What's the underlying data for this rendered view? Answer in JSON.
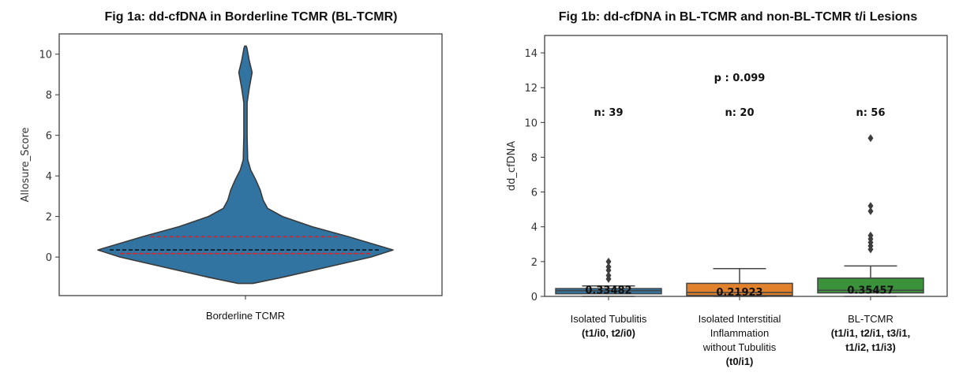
{
  "chart_data": [
    {
      "type": "violin",
      "title": "Fig 1a: dd-cfDNA in Borderline TCMR (BL-TCMR)",
      "xlabel": "",
      "ylabel": "Allosure_Score",
      "categories": [
        "Borderline TCMR"
      ],
      "ylim": [
        -1.9,
        11
      ],
      "yticks": [
        0,
        2,
        4,
        6,
        8,
        10
      ],
      "color": "#3274a1",
      "median": 0.35,
      "q1": 0.17,
      "q3": 1.0,
      "density_profile": [
        [
          -1.3,
          0.05
        ],
        [
          -1.0,
          0.25
        ],
        [
          -0.5,
          0.55
        ],
        [
          0,
          0.85
        ],
        [
          0.35,
          1.0
        ],
        [
          1.0,
          0.7
        ],
        [
          1.5,
          0.45
        ],
        [
          2.0,
          0.25
        ],
        [
          2.4,
          0.15
        ],
        [
          2.8,
          0.12
        ],
        [
          3.3,
          0.1
        ],
        [
          3.8,
          0.07
        ],
        [
          4.3,
          0.035
        ],
        [
          4.8,
          0.015
        ],
        [
          6,
          0.011
        ],
        [
          7.6,
          0.011
        ],
        [
          8.3,
          0.025
        ],
        [
          9.1,
          0.045
        ],
        [
          9.7,
          0.025
        ],
        [
          10.3,
          0.01
        ],
        [
          10.4,
          0.005
        ]
      ]
    },
    {
      "type": "box",
      "title": "Fig 1b: dd-cfDNA in BL-TCMR and non-BL-TCMR t/i Lesions",
      "xlabel": "",
      "ylabel": "dd_cfDNA",
      "ylim": [
        0,
        15
      ],
      "yticks": [
        0,
        2,
        4,
        6,
        8,
        10,
        12,
        14
      ],
      "p_value_label": "p : 0.099",
      "p_value_y": 12.6,
      "n_label_y": 10.6,
      "groups": [
        {
          "label_lines": [
            "Isolated Tubulitis"
          ],
          "label_bold_lines": [
            "(t1/i0, t2/i0)"
          ],
          "n_label": "n: 39",
          "median_label": "0.33482",
          "color": "#3274a1",
          "whisker_low": 0,
          "q1": 0.15,
          "median": 0.33,
          "q3": 0.45,
          "whisker_high": 0.6,
          "outliers": [
            1.0,
            1.2,
            1.5,
            1.7,
            2.0
          ]
        },
        {
          "label_lines": [
            "Isolated Interstitial",
            "Inflammation",
            "without Tubulitis"
          ],
          "label_bold_lines": [
            "(t0/i1)"
          ],
          "n_label": "n: 20",
          "median_label": "0.21923",
          "color": "#e1812c",
          "whisker_low": 0,
          "q1": 0.05,
          "median": 0.22,
          "q3": 0.75,
          "whisker_high": 1.6,
          "outliers": []
        },
        {
          "label_lines": [
            "BL-TCMR"
          ],
          "label_bold_lines": [
            "(t1/i1, t2/i1, t3/i1,",
            "t1/i2, t1/i3)"
          ],
          "n_label": "n: 56",
          "median_label": "0.35457",
          "color": "#3a923a",
          "whisker_low": 0,
          "q1": 0.2,
          "median": 0.35,
          "q3": 1.05,
          "whisker_high": 1.75,
          "outliers": [
            2.7,
            2.9,
            3.1,
            3.3,
            3.5,
            4.9,
            5.2,
            9.1
          ]
        }
      ]
    }
  ]
}
